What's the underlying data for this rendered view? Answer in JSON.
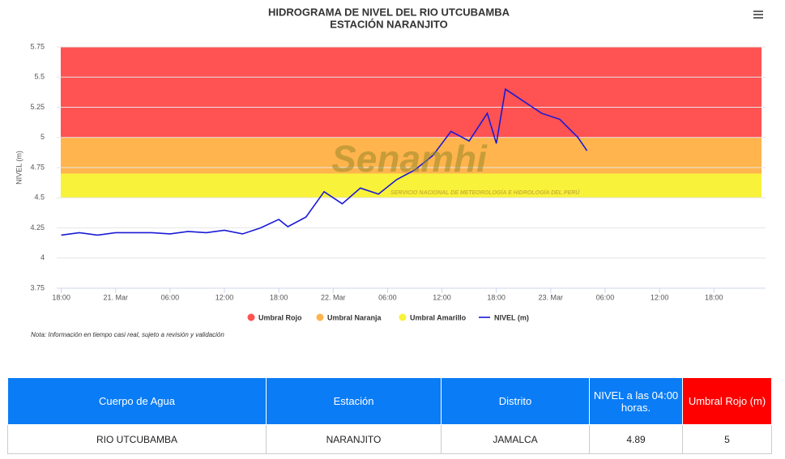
{
  "chart_data": {
    "type": "line",
    "title": "HIDROGRAMA DE NIVEL DEL RIO UTCUBAMBA",
    "subtitle": "ESTACIÓN NARANJITO",
    "y_label": "NIVEL (m)",
    "xlim": [
      -0.5,
      77.7
    ],
    "xticks": [
      {
        "value": 0,
        "label": "18:00"
      },
      {
        "value": 6,
        "label": "21. Mar"
      },
      {
        "value": 12,
        "label": "06:00"
      },
      {
        "value": 18,
        "label": "12:00"
      },
      {
        "value": 24,
        "label": "18:00"
      },
      {
        "value": 30,
        "label": "22. Mar"
      },
      {
        "value": 36,
        "label": "06:00"
      },
      {
        "value": 42,
        "label": "12:00"
      },
      {
        "value": 48,
        "label": "18:00"
      },
      {
        "value": 54,
        "label": "23. Mar"
      },
      {
        "value": 60,
        "label": "06:00"
      },
      {
        "value": 66,
        "label": "12:00"
      },
      {
        "value": 72,
        "label": "18:00"
      }
    ],
    "ylim": [
      3.75,
      5.75
    ],
    "yticks": [
      5.75,
      5.5,
      5.25,
      5,
      4.75,
      4.5,
      4.25,
      4,
      3.75
    ],
    "grid": true,
    "bands": [
      {
        "name": "Umbral Rojo",
        "color": "#ff5252",
        "from": 5,
        "to": 5.75
      },
      {
        "name": "Umbral Naranja",
        "color": "#ffb44d",
        "from": 4.7,
        "to": 5
      },
      {
        "name": "Umbral Amarillo",
        "color": "#f8f23a",
        "from": 4.5,
        "to": 4.7
      }
    ],
    "series": [
      {
        "name": "NIVEL (m)",
        "color": "#1a1ad6",
        "x": [
          0,
          2,
          4,
          6,
          8,
          10,
          12,
          14,
          16,
          18,
          20,
          22,
          24,
          25,
          27,
          29,
          31,
          33,
          35,
          37,
          39,
          41,
          43,
          45,
          47,
          48,
          49,
          50,
          51,
          53,
          55,
          57,
          58
        ],
        "values": [
          4.19,
          4.21,
          4.19,
          4.21,
          4.21,
          4.21,
          4.2,
          4.22,
          4.21,
          4.23,
          4.2,
          4.25,
          4.32,
          4.26,
          4.34,
          4.55,
          4.45,
          4.58,
          4.53,
          4.65,
          4.73,
          4.85,
          5.05,
          4.97,
          5.2,
          4.95,
          5.4,
          5.35,
          5.3,
          5.2,
          5.15,
          5.0,
          4.89
        ]
      }
    ],
    "watermark": {
      "logo": "Senamhi",
      "text": "SERVICIO NACIONAL DE METEOROLOGÍA E HIDROLOGÍA DEL PERÚ"
    },
    "note": "Nota: Información en tiempo casi real, sujeto a revisión y validación"
  },
  "table": {
    "headers": [
      "Cuerpo de Agua",
      "Estación",
      "Distrito",
      "NIVEL a las 04:00 horas.",
      "Umbral Rojo (m)"
    ],
    "rows": [
      [
        "RIO UTCUBAMBA",
        "NARANJITO",
        "JAMALCA",
        "4.89",
        "5"
      ]
    ]
  }
}
